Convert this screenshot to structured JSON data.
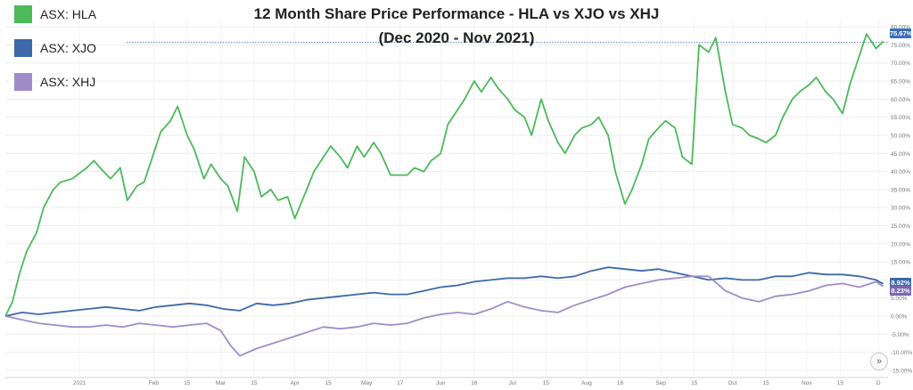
{
  "chart_data": {
    "type": "line",
    "title": "12 Month Share Price Performance - HLA vs XJO vs XHJ",
    "subtitle": "(Dec 2020 - Nov 2021)",
    "xlabel": "",
    "ylabel": "",
    "ylim": [
      -16.5,
      82.0
    ],
    "y_ticks": [
      {
        "v": 80,
        "label": "80.00%"
      },
      {
        "v": 75,
        "label": "75.00%"
      },
      {
        "v": 70,
        "label": "70.00%"
      },
      {
        "v": 65,
        "label": "65.00%"
      },
      {
        "v": 60,
        "label": "60.00%"
      },
      {
        "v": 55,
        "label": "55.00%"
      },
      {
        "v": 50,
        "label": "50.00%"
      },
      {
        "v": 45,
        "label": "45.00%"
      },
      {
        "v": 40,
        "label": "40.00%"
      },
      {
        "v": 35,
        "label": "35.00%"
      },
      {
        "v": 30,
        "label": "30.00%"
      },
      {
        "v": 25,
        "label": "25.00%"
      },
      {
        "v": 20,
        "label": "20.00%"
      },
      {
        "v": 15,
        "label": "15.00%"
      },
      {
        "v": 10,
        "label": "10.00%"
      },
      {
        "v": 5,
        "label": "5.00%"
      },
      {
        "v": 0,
        "label": "0.00%"
      },
      {
        "v": -5,
        "label": "-5.00%"
      },
      {
        "v": -10,
        "label": "-10.00%"
      },
      {
        "v": -15,
        "label": "-15.00%"
      }
    ],
    "x_ticks": [
      {
        "d": "2021-01-01",
        "label": "2021"
      },
      {
        "d": "2021-02-01",
        "label": "Feb"
      },
      {
        "d": "2021-02-15",
        "label": "15"
      },
      {
        "d": "2021-03-01",
        "label": "Mar"
      },
      {
        "d": "2021-03-15",
        "label": "15"
      },
      {
        "d": "2021-04-01",
        "label": "Apr"
      },
      {
        "d": "2021-04-15",
        "label": "15"
      },
      {
        "d": "2021-05-01",
        "label": "May"
      },
      {
        "d": "2021-05-15",
        "label": "17"
      },
      {
        "d": "2021-06-01",
        "label": "Jun"
      },
      {
        "d": "2021-06-15",
        "label": "16"
      },
      {
        "d": "2021-07-01",
        "label": "Jul"
      },
      {
        "d": "2021-07-15",
        "label": "15"
      },
      {
        "d": "2021-08-01",
        "label": "Aug"
      },
      {
        "d": "2021-08-15",
        "label": "16"
      },
      {
        "d": "2021-09-01",
        "label": "Sep"
      },
      {
        "d": "2021-09-15",
        "label": "15"
      },
      {
        "d": "2021-10-01",
        "label": "Oct"
      },
      {
        "d": "2021-10-15",
        "label": "15"
      },
      {
        "d": "2021-11-01",
        "label": "Nov"
      },
      {
        "d": "2021-11-15",
        "label": "15"
      },
      {
        "d": "2021-12-01",
        "label": "D"
      }
    ],
    "reference_line": {
      "value": 75.67,
      "label": "75.67%"
    },
    "legend_position": "top-left",
    "grid": true,
    "series": [
      {
        "name": "ASX: HLA",
        "color": "#4cb95a",
        "end_label": "75.67%",
        "points": [
          [
            "2020-12-01",
            0
          ],
          [
            "2020-12-04",
            4
          ],
          [
            "2020-12-07",
            12
          ],
          [
            "2020-12-10",
            18
          ],
          [
            "2020-12-14",
            23
          ],
          [
            "2020-12-17",
            30
          ],
          [
            "2020-12-21",
            35
          ],
          [
            "2020-12-24",
            37
          ],
          [
            "2020-12-29",
            38
          ],
          [
            "2021-01-04",
            41
          ],
          [
            "2021-01-07",
            43
          ],
          [
            "2021-01-11",
            40
          ],
          [
            "2021-01-14",
            38
          ],
          [
            "2021-01-18",
            41
          ],
          [
            "2021-01-21",
            32
          ],
          [
            "2021-01-25",
            36
          ],
          [
            "2021-01-28",
            37
          ],
          [
            "2021-02-01",
            45
          ],
          [
            "2021-02-04",
            51
          ],
          [
            "2021-02-08",
            54
          ],
          [
            "2021-02-11",
            58
          ],
          [
            "2021-02-15",
            50
          ],
          [
            "2021-02-18",
            46
          ],
          [
            "2021-02-22",
            38
          ],
          [
            "2021-02-25",
            42
          ],
          [
            "2021-03-01",
            38
          ],
          [
            "2021-03-04",
            36
          ],
          [
            "2021-03-08",
            29
          ],
          [
            "2021-03-11",
            44
          ],
          [
            "2021-03-15",
            40
          ],
          [
            "2021-03-18",
            33
          ],
          [
            "2021-03-22",
            35
          ],
          [
            "2021-03-25",
            32
          ],
          [
            "2021-03-29",
            33
          ],
          [
            "2021-04-01",
            27
          ],
          [
            "2021-04-06",
            35
          ],
          [
            "2021-04-09",
            40
          ],
          [
            "2021-04-13",
            44
          ],
          [
            "2021-04-16",
            47
          ],
          [
            "2021-04-20",
            44
          ],
          [
            "2021-04-23",
            41
          ],
          [
            "2021-04-27",
            47
          ],
          [
            "2021-04-30",
            44
          ],
          [
            "2021-05-04",
            48
          ],
          [
            "2021-05-07",
            45
          ],
          [
            "2021-05-11",
            39
          ],
          [
            "2021-05-14",
            39
          ],
          [
            "2021-05-18",
            39
          ],
          [
            "2021-05-21",
            41
          ],
          [
            "2021-05-25",
            40
          ],
          [
            "2021-05-28",
            43
          ],
          [
            "2021-06-01",
            45
          ],
          [
            "2021-06-04",
            53
          ],
          [
            "2021-06-08",
            57
          ],
          [
            "2021-06-11",
            60
          ],
          [
            "2021-06-15",
            65
          ],
          [
            "2021-06-18",
            62
          ],
          [
            "2021-06-22",
            66
          ],
          [
            "2021-06-25",
            63
          ],
          [
            "2021-06-29",
            60
          ],
          [
            "2021-07-02",
            57
          ],
          [
            "2021-07-06",
            55
          ],
          [
            "2021-07-09",
            50
          ],
          [
            "2021-07-13",
            60
          ],
          [
            "2021-07-16",
            54
          ],
          [
            "2021-07-20",
            48
          ],
          [
            "2021-07-23",
            45
          ],
          [
            "2021-07-27",
            50
          ],
          [
            "2021-07-30",
            52
          ],
          [
            "2021-08-03",
            53
          ],
          [
            "2021-08-06",
            55
          ],
          [
            "2021-08-10",
            50
          ],
          [
            "2021-08-13",
            40
          ],
          [
            "2021-08-17",
            31
          ],
          [
            "2021-08-20",
            35
          ],
          [
            "2021-08-24",
            42
          ],
          [
            "2021-08-27",
            49
          ],
          [
            "2021-08-31",
            52
          ],
          [
            "2021-09-03",
            54
          ],
          [
            "2021-09-07",
            52
          ],
          [
            "2021-09-10",
            44
          ],
          [
            "2021-09-14",
            42
          ],
          [
            "2021-09-17",
            75
          ],
          [
            "2021-09-21",
            73
          ],
          [
            "2021-09-24",
            77
          ],
          [
            "2021-09-28",
            62
          ],
          [
            "2021-10-01",
            53
          ],
          [
            "2021-10-05",
            52
          ],
          [
            "2021-10-08",
            50
          ],
          [
            "2021-10-12",
            49
          ],
          [
            "2021-10-15",
            48
          ],
          [
            "2021-10-19",
            50
          ],
          [
            "2021-10-22",
            55
          ],
          [
            "2021-10-26",
            60
          ],
          [
            "2021-10-29",
            62
          ],
          [
            "2021-11-02",
            64
          ],
          [
            "2021-11-05",
            66
          ],
          [
            "2021-11-09",
            62
          ],
          [
            "2021-11-12",
            60
          ],
          [
            "2021-11-16",
            56
          ],
          [
            "2021-11-19",
            64
          ],
          [
            "2021-11-23",
            72
          ],
          [
            "2021-11-26",
            78
          ],
          [
            "2021-11-30",
            74
          ],
          [
            "2021-12-03",
            76
          ]
        ]
      },
      {
        "name": "ASX: XJO",
        "color": "#3c6aa8",
        "end_label": "8.92%",
        "points": [
          [
            "2020-12-01",
            0
          ],
          [
            "2020-12-08",
            1
          ],
          [
            "2020-12-15",
            0.5
          ],
          [
            "2020-12-22",
            1
          ],
          [
            "2020-12-29",
            1.5
          ],
          [
            "2021-01-05",
            2
          ],
          [
            "2021-01-12",
            2.5
          ],
          [
            "2021-01-19",
            2
          ],
          [
            "2021-01-26",
            1.5
          ],
          [
            "2021-02-02",
            2.5
          ],
          [
            "2021-02-09",
            3
          ],
          [
            "2021-02-16",
            3.5
          ],
          [
            "2021-02-23",
            3
          ],
          [
            "2021-03-02",
            2
          ],
          [
            "2021-03-09",
            1.5
          ],
          [
            "2021-03-16",
            3.5
          ],
          [
            "2021-03-23",
            3
          ],
          [
            "2021-03-30",
            3.5
          ],
          [
            "2021-04-06",
            4.5
          ],
          [
            "2021-04-13",
            5
          ],
          [
            "2021-04-20",
            5.5
          ],
          [
            "2021-04-27",
            6
          ],
          [
            "2021-05-04",
            6.5
          ],
          [
            "2021-05-11",
            6
          ],
          [
            "2021-05-18",
            6
          ],
          [
            "2021-05-25",
            7
          ],
          [
            "2021-06-01",
            8
          ],
          [
            "2021-06-08",
            8.5
          ],
          [
            "2021-06-15",
            9.5
          ],
          [
            "2021-06-22",
            10
          ],
          [
            "2021-06-29",
            10.5
          ],
          [
            "2021-07-06",
            10.5
          ],
          [
            "2021-07-13",
            11
          ],
          [
            "2021-07-20",
            10.5
          ],
          [
            "2021-07-27",
            11
          ],
          [
            "2021-08-03",
            12.5
          ],
          [
            "2021-08-10",
            13.5
          ],
          [
            "2021-08-17",
            13
          ],
          [
            "2021-08-24",
            12.5
          ],
          [
            "2021-08-31",
            13
          ],
          [
            "2021-09-07",
            12
          ],
          [
            "2021-09-14",
            11
          ],
          [
            "2021-09-21",
            10
          ],
          [
            "2021-09-28",
            10.5
          ],
          [
            "2021-10-05",
            10
          ],
          [
            "2021-10-12",
            10
          ],
          [
            "2021-10-19",
            11
          ],
          [
            "2021-10-26",
            11
          ],
          [
            "2021-11-02",
            12
          ],
          [
            "2021-11-09",
            11.5
          ],
          [
            "2021-11-16",
            11.5
          ],
          [
            "2021-11-23",
            11
          ],
          [
            "2021-11-30",
            10
          ],
          [
            "2021-12-03",
            8.92
          ]
        ]
      },
      {
        "name": "ASX: XHJ",
        "color": "#9f8cc7",
        "end_label": "8.23%",
        "points": [
          [
            "2020-12-01",
            0
          ],
          [
            "2020-12-08",
            -1
          ],
          [
            "2020-12-15",
            -2
          ],
          [
            "2020-12-22",
            -2.5
          ],
          [
            "2020-12-29",
            -3
          ],
          [
            "2021-01-05",
            -3
          ],
          [
            "2021-01-12",
            -2.5
          ],
          [
            "2021-01-19",
            -3
          ],
          [
            "2021-01-26",
            -2
          ],
          [
            "2021-02-02",
            -2.5
          ],
          [
            "2021-02-09",
            -3
          ],
          [
            "2021-02-16",
            -2.5
          ],
          [
            "2021-02-23",
            -2
          ],
          [
            "2021-03-01",
            -4
          ],
          [
            "2021-03-05",
            -8
          ],
          [
            "2021-03-09",
            -11
          ],
          [
            "2021-03-16",
            -9
          ],
          [
            "2021-03-23",
            -7.5
          ],
          [
            "2021-03-30",
            -6
          ],
          [
            "2021-04-06",
            -4.5
          ],
          [
            "2021-04-13",
            -3
          ],
          [
            "2021-04-20",
            -3.5
          ],
          [
            "2021-04-27",
            -3
          ],
          [
            "2021-05-04",
            -2
          ],
          [
            "2021-05-11",
            -2.5
          ],
          [
            "2021-05-18",
            -2
          ],
          [
            "2021-05-25",
            -0.5
          ],
          [
            "2021-06-01",
            0.5
          ],
          [
            "2021-06-08",
            1
          ],
          [
            "2021-06-15",
            0.5
          ],
          [
            "2021-06-22",
            2
          ],
          [
            "2021-06-29",
            4
          ],
          [
            "2021-07-06",
            2.5
          ],
          [
            "2021-07-13",
            1.5
          ],
          [
            "2021-07-20",
            1
          ],
          [
            "2021-07-27",
            3
          ],
          [
            "2021-08-03",
            4.5
          ],
          [
            "2021-08-10",
            6
          ],
          [
            "2021-08-17",
            8
          ],
          [
            "2021-08-24",
            9
          ],
          [
            "2021-08-31",
            10
          ],
          [
            "2021-09-07",
            10.5
          ],
          [
            "2021-09-14",
            11
          ],
          [
            "2021-09-21",
            11
          ],
          [
            "2021-09-28",
            7
          ],
          [
            "2021-10-05",
            5
          ],
          [
            "2021-10-12",
            4
          ],
          [
            "2021-10-19",
            5.5
          ],
          [
            "2021-10-26",
            6
          ],
          [
            "2021-11-02",
            7
          ],
          [
            "2021-11-09",
            8.5
          ],
          [
            "2021-11-16",
            9
          ],
          [
            "2021-11-23",
            8
          ],
          [
            "2021-11-30",
            9.5
          ],
          [
            "2021-12-03",
            8.23
          ]
        ]
      }
    ]
  },
  "legend": {
    "items": [
      {
        "label": "ASX: HLA",
        "color": "#4cb95a"
      },
      {
        "label": "ASX: XJO",
        "color": "#3c6aa8"
      },
      {
        "label": "ASX: XHJ",
        "color": "#9f8cc7"
      }
    ]
  },
  "nav_button": {
    "icon": "double-chevron-right-icon",
    "glyph": "»"
  }
}
